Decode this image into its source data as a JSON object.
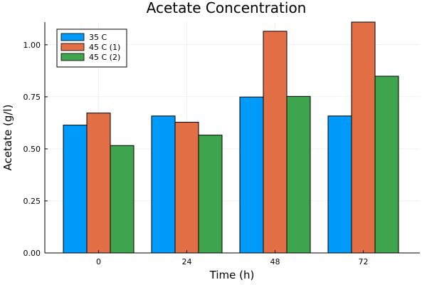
{
  "chart_data": {
    "type": "bar",
    "title": "Acetate Concentration",
    "xlabel": "Time (h)",
    "ylabel": "Acetate (g/l)",
    "categories": [
      "0",
      "24",
      "48",
      "72"
    ],
    "series": [
      {
        "name": "35 C",
        "color": "#009AFA",
        "values": [
          0.614,
          0.658,
          0.749,
          0.658
        ]
      },
      {
        "name": "45 C (1)",
        "color": "#E26F46",
        "values": [
          0.672,
          0.628,
          1.065,
          1.109
        ]
      },
      {
        "name": "45 C (2)",
        "color": "#3EA44E",
        "values": [
          0.516,
          0.566,
          0.752,
          0.849
        ]
      }
    ],
    "ylim": [
      0,
      1.109
    ],
    "yticks": [
      0.0,
      0.25,
      0.5,
      0.75,
      1.0
    ],
    "ytick_labels": [
      "0.00",
      "0.25",
      "0.50",
      "0.75",
      "1.00"
    ],
    "grid": true,
    "legend_position": "top-left"
  }
}
